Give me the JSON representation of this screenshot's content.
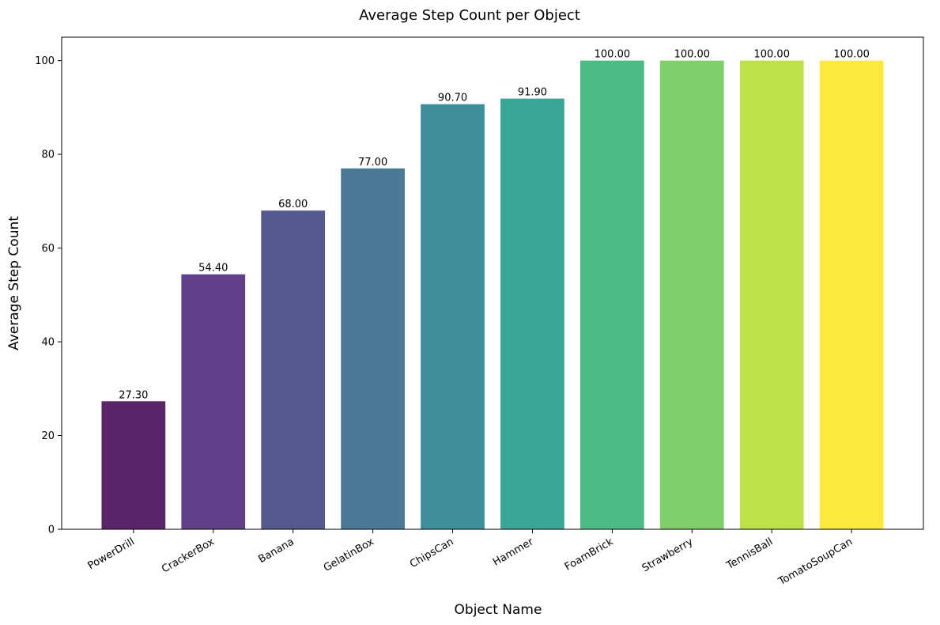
{
  "chart_data": {
    "type": "bar",
    "title": "Average Step Count per Object",
    "xlabel": "Object Name",
    "ylabel": "Average Step Count",
    "categories": [
      "PowerDrill",
      "CrackerBox",
      "Banana",
      "GelatinBox",
      "ChipsCan",
      "Hammer",
      "FoamBrick",
      "Strawberry",
      "TennisBall",
      "TomatoSoupCan"
    ],
    "values": [
      27.3,
      54.4,
      68.0,
      77.0,
      90.7,
      91.9,
      100.0,
      100.0,
      100.0,
      100.0
    ],
    "value_labels": [
      "27.30",
      "54.40",
      "68.00",
      "77.00",
      "90.70",
      "91.90",
      "100.00",
      "100.00",
      "100.00",
      "100.00"
    ],
    "colors": [
      "#5c2468",
      "#613f89",
      "#55598f",
      "#4b7a99",
      "#3f8e9b",
      "#39a797",
      "#4cbc86",
      "#7ecf6a",
      "#bde249",
      "#fde93c"
    ],
    "ylim": [
      0,
      105
    ],
    "yticks": [
      0,
      20,
      40,
      60,
      80,
      100
    ],
    "ytick_labels": [
      "0",
      "20",
      "40",
      "60",
      "80",
      "100"
    ],
    "grid": false,
    "legend": "none"
  }
}
